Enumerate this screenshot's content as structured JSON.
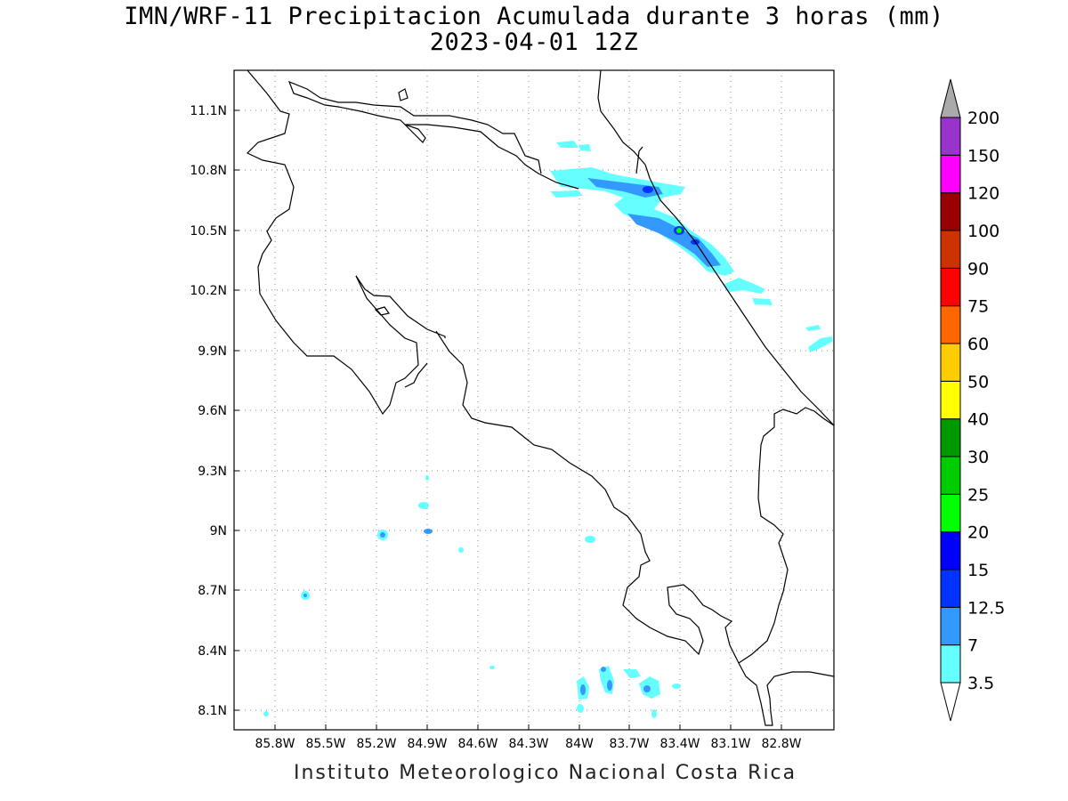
{
  "title": "IMN/WRF-11 Precipitacion Acumulada durante 3 horas (mm)",
  "subtitle": "2023-04-01 12Z",
  "footer": "Instituto Meteorologico Nacional Costa Rica",
  "map": {
    "lon_range": [
      -86.0,
      -83.0
    ],
    "lat_range": [
      8.0,
      11.3
    ],
    "x_ticks": [
      "85.8W",
      "85.5W",
      "85.2W",
      "84.9W",
      "84.6W",
      "84.3W",
      "84W",
      "83.7W",
      "83.4W",
      "83.1W",
      "82.8W"
    ],
    "y_ticks": [
      "11.1N",
      "10.8N",
      "10.5N",
      "10.2N",
      "9.9N",
      "9.6N",
      "9.3N",
      "9N",
      "8.7N",
      "8.4N",
      "8.1N"
    ],
    "grid": "dotted"
  },
  "colorbar": {
    "levels": [
      "3.5",
      "7",
      "12.5",
      "15",
      "20",
      "25",
      "30",
      "40",
      "50",
      "60",
      "75",
      "90",
      "100",
      "120",
      "150",
      "200"
    ],
    "colors": [
      "#66ffff",
      "#3399ff",
      "#0033ff",
      "#0000ff",
      "#00ff00",
      "#00cc00",
      "#009900",
      "#ffff00",
      "#ffcc00",
      "#ff6600",
      "#ff0000",
      "#cc3300",
      "#990000",
      "#ff00ff",
      "#9933cc",
      "#f2f2f2",
      "#aaaaaa"
    ]
  }
}
